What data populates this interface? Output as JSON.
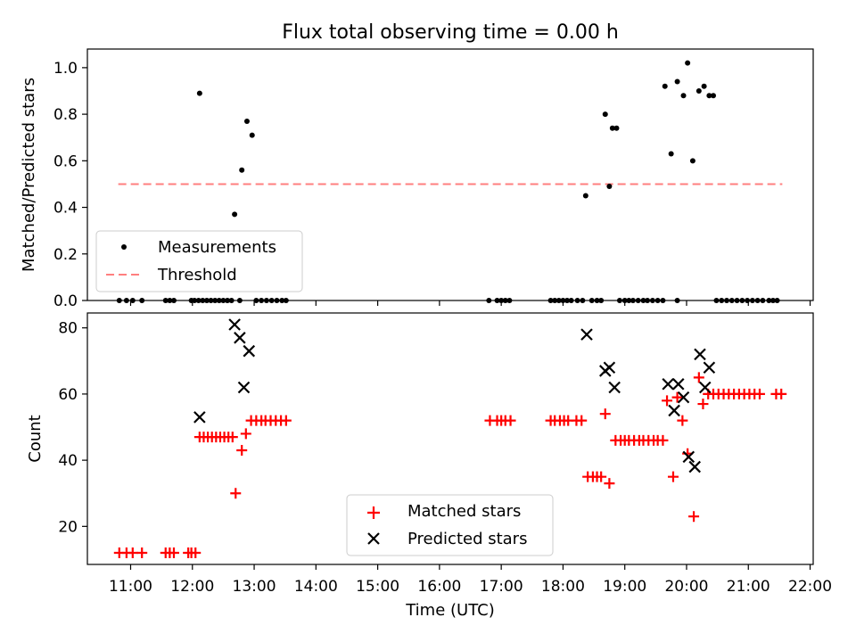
{
  "figure_title": "Flux total observing time = 0.00 h",
  "colors": {
    "measurement": "#000000",
    "threshold": "#ff7f7f",
    "matched": "#ff0000",
    "predicted": "#000000"
  },
  "chart_data": [
    {
      "type": "scatter",
      "title": "Flux total observing time = 0.00 h",
      "xlabel": "",
      "ylabel": "Matched/Predicted stars",
      "xlim": [
        "10:18",
        "22:03"
      ],
      "ylim": [
        0,
        1.08
      ],
      "yticks": [
        0.0,
        0.2,
        0.4,
        0.6,
        0.8,
        1.0
      ],
      "ytick_labels": [
        "0.0",
        "0.2",
        "0.4",
        "0.6",
        "0.8",
        "1.0"
      ],
      "legend_position": "lower-left",
      "threshold": {
        "name": "Threshold",
        "y": 0.5,
        "x_start": "10:48",
        "x_end": "21:33",
        "style": "dashed"
      },
      "series": [
        {
          "name": "Measurements",
          "marker": "dot",
          "x": [
            "12:07",
            "12:41",
            "12:48",
            "12:53",
            "12:58",
            "18:22",
            "18:41",
            "18:45",
            "18:48",
            "18:52",
            "19:39",
            "19:45",
            "19:51",
            "19:57",
            "20:01",
            "20:06",
            "20:12",
            "20:17",
            "20:22",
            "20:26",
            "10:49",
            "10:56",
            "11:02",
            "11:11",
            "11:34",
            "11:38",
            "11:42",
            "11:59",
            "12:02",
            "12:06",
            "12:10",
            "12:14",
            "12:18",
            "12:22",
            "12:26",
            "12:30",
            "12:34",
            "12:38",
            "12:46",
            "13:02",
            "13:07",
            "13:12",
            "13:17",
            "13:22",
            "13:27",
            "13:31",
            "16:48",
            "16:56",
            "17:00",
            "17:04",
            "17:08",
            "17:48",
            "17:52",
            "17:56",
            "18:00",
            "18:04",
            "18:08",
            "18:14",
            "18:19",
            "18:28",
            "18:33",
            "18:37",
            "18:55",
            "19:00",
            "19:04",
            "19:08",
            "19:13",
            "19:18",
            "19:22",
            "19:27",
            "19:32",
            "19:37",
            "19:51",
            "20:29",
            "20:34",
            "20:39",
            "20:44",
            "20:49",
            "20:54",
            "20:59",
            "21:04",
            "21:09",
            "21:14",
            "21:20",
            "21:24",
            "21:28"
          ],
          "y": [
            0.89,
            0.37,
            0.56,
            0.77,
            0.71,
            0.45,
            0.8,
            0.49,
            0.74,
            0.74,
            0.92,
            0.63,
            0.94,
            0.88,
            1.02,
            0.6,
            0.9,
            0.92,
            0.88,
            0.88,
            0,
            0,
            0,
            0,
            0,
            0,
            0,
            0,
            0,
            0,
            0,
            0,
            0,
            0,
            0,
            0,
            0,
            0,
            0,
            0,
            0,
            0,
            0,
            0,
            0,
            0,
            0,
            0,
            0,
            0,
            0,
            0,
            0,
            0,
            0,
            0,
            0,
            0,
            0,
            0,
            0,
            0,
            0,
            0,
            0,
            0,
            0,
            0,
            0,
            0,
            0,
            0,
            0,
            0,
            0,
            0,
            0,
            0,
            0,
            0,
            0,
            0,
            0,
            0,
            0,
            0
          ]
        }
      ]
    },
    {
      "type": "scatter",
      "title": "",
      "xlabel": "Time (UTC)",
      "ylabel": "Count",
      "xlim": [
        "10:18",
        "22:03"
      ],
      "ylim": [
        8.5,
        84.5
      ],
      "yticks": [
        20,
        40,
        60,
        80
      ],
      "ytick_labels": [
        "20",
        "40",
        "60",
        "80"
      ],
      "xticks": [
        "11:00",
        "12:00",
        "13:00",
        "14:00",
        "15:00",
        "16:00",
        "17:00",
        "18:00",
        "19:00",
        "20:00",
        "21:00",
        "22:00"
      ],
      "legend_position": "lower-center",
      "series": [
        {
          "name": "Matched stars",
          "marker": "plus",
          "x": [
            "10:49",
            "10:56",
            "11:02",
            "11:11",
            "11:34",
            "11:38",
            "11:42",
            "11:56",
            "11:59",
            "12:03",
            "12:07",
            "12:11",
            "12:15",
            "12:19",
            "12:23",
            "12:27",
            "12:31",
            "12:35",
            "12:39",
            "12:42",
            "12:48",
            "12:52",
            "12:57",
            "13:02",
            "13:07",
            "13:11",
            "13:16",
            "13:21",
            "13:26",
            "13:31",
            "16:49",
            "16:56",
            "17:00",
            "17:04",
            "17:09",
            "17:48",
            "17:52",
            "17:57",
            "18:01",
            "18:05",
            "18:13",
            "18:18",
            "18:24",
            "18:29",
            "18:33",
            "18:37",
            "18:41",
            "18:45",
            "18:51",
            "18:56",
            "19:00",
            "19:04",
            "19:09",
            "19:14",
            "19:18",
            "19:23",
            "19:28",
            "19:32",
            "19:37",
            "19:41",
            "19:47",
            "19:51",
            "19:56",
            "20:01",
            "20:07",
            "20:12",
            "20:16",
            "20:21",
            "20:26",
            "20:31",
            "20:36",
            "20:41",
            "20:46",
            "20:51",
            "20:56",
            "21:01",
            "21:06",
            "21:11",
            "21:27",
            "21:32"
          ],
          "y": [
            12,
            12,
            12,
            12,
            12,
            12,
            12,
            12,
            12,
            12,
            47,
            47,
            47,
            47,
            47,
            47,
            47,
            47,
            47,
            30,
            43,
            48,
            52,
            52,
            52,
            52,
            52,
            52,
            52,
            52,
            52,
            52,
            52,
            52,
            52,
            52,
            52,
            52,
            52,
            52,
            52,
            52,
            35,
            35,
            35,
            35,
            54,
            33,
            46,
            46,
            46,
            46,
            46,
            46,
            46,
            46,
            46,
            46,
            46,
            58,
            35,
            59,
            52,
            42,
            23,
            65,
            57,
            60,
            60,
            60,
            60,
            60,
            60,
            60,
            60,
            60,
            60,
            60,
            60,
            60
          ]
        },
        {
          "name": "Predicted stars",
          "marker": "x",
          "x": [
            "12:07",
            "12:41",
            "12:46",
            "12:50",
            "12:55",
            "18:23",
            "18:41",
            "18:45",
            "18:50",
            "19:42",
            "19:48",
            "19:52",
            "19:57",
            "20:02",
            "20:08",
            "20:13",
            "20:18",
            "20:22"
          ],
          "y": [
            53,
            81,
            77,
            62,
            73,
            78,
            67,
            68,
            62,
            63,
            55,
            63,
            59,
            41,
            38,
            72,
            62,
            68
          ]
        }
      ]
    }
  ]
}
